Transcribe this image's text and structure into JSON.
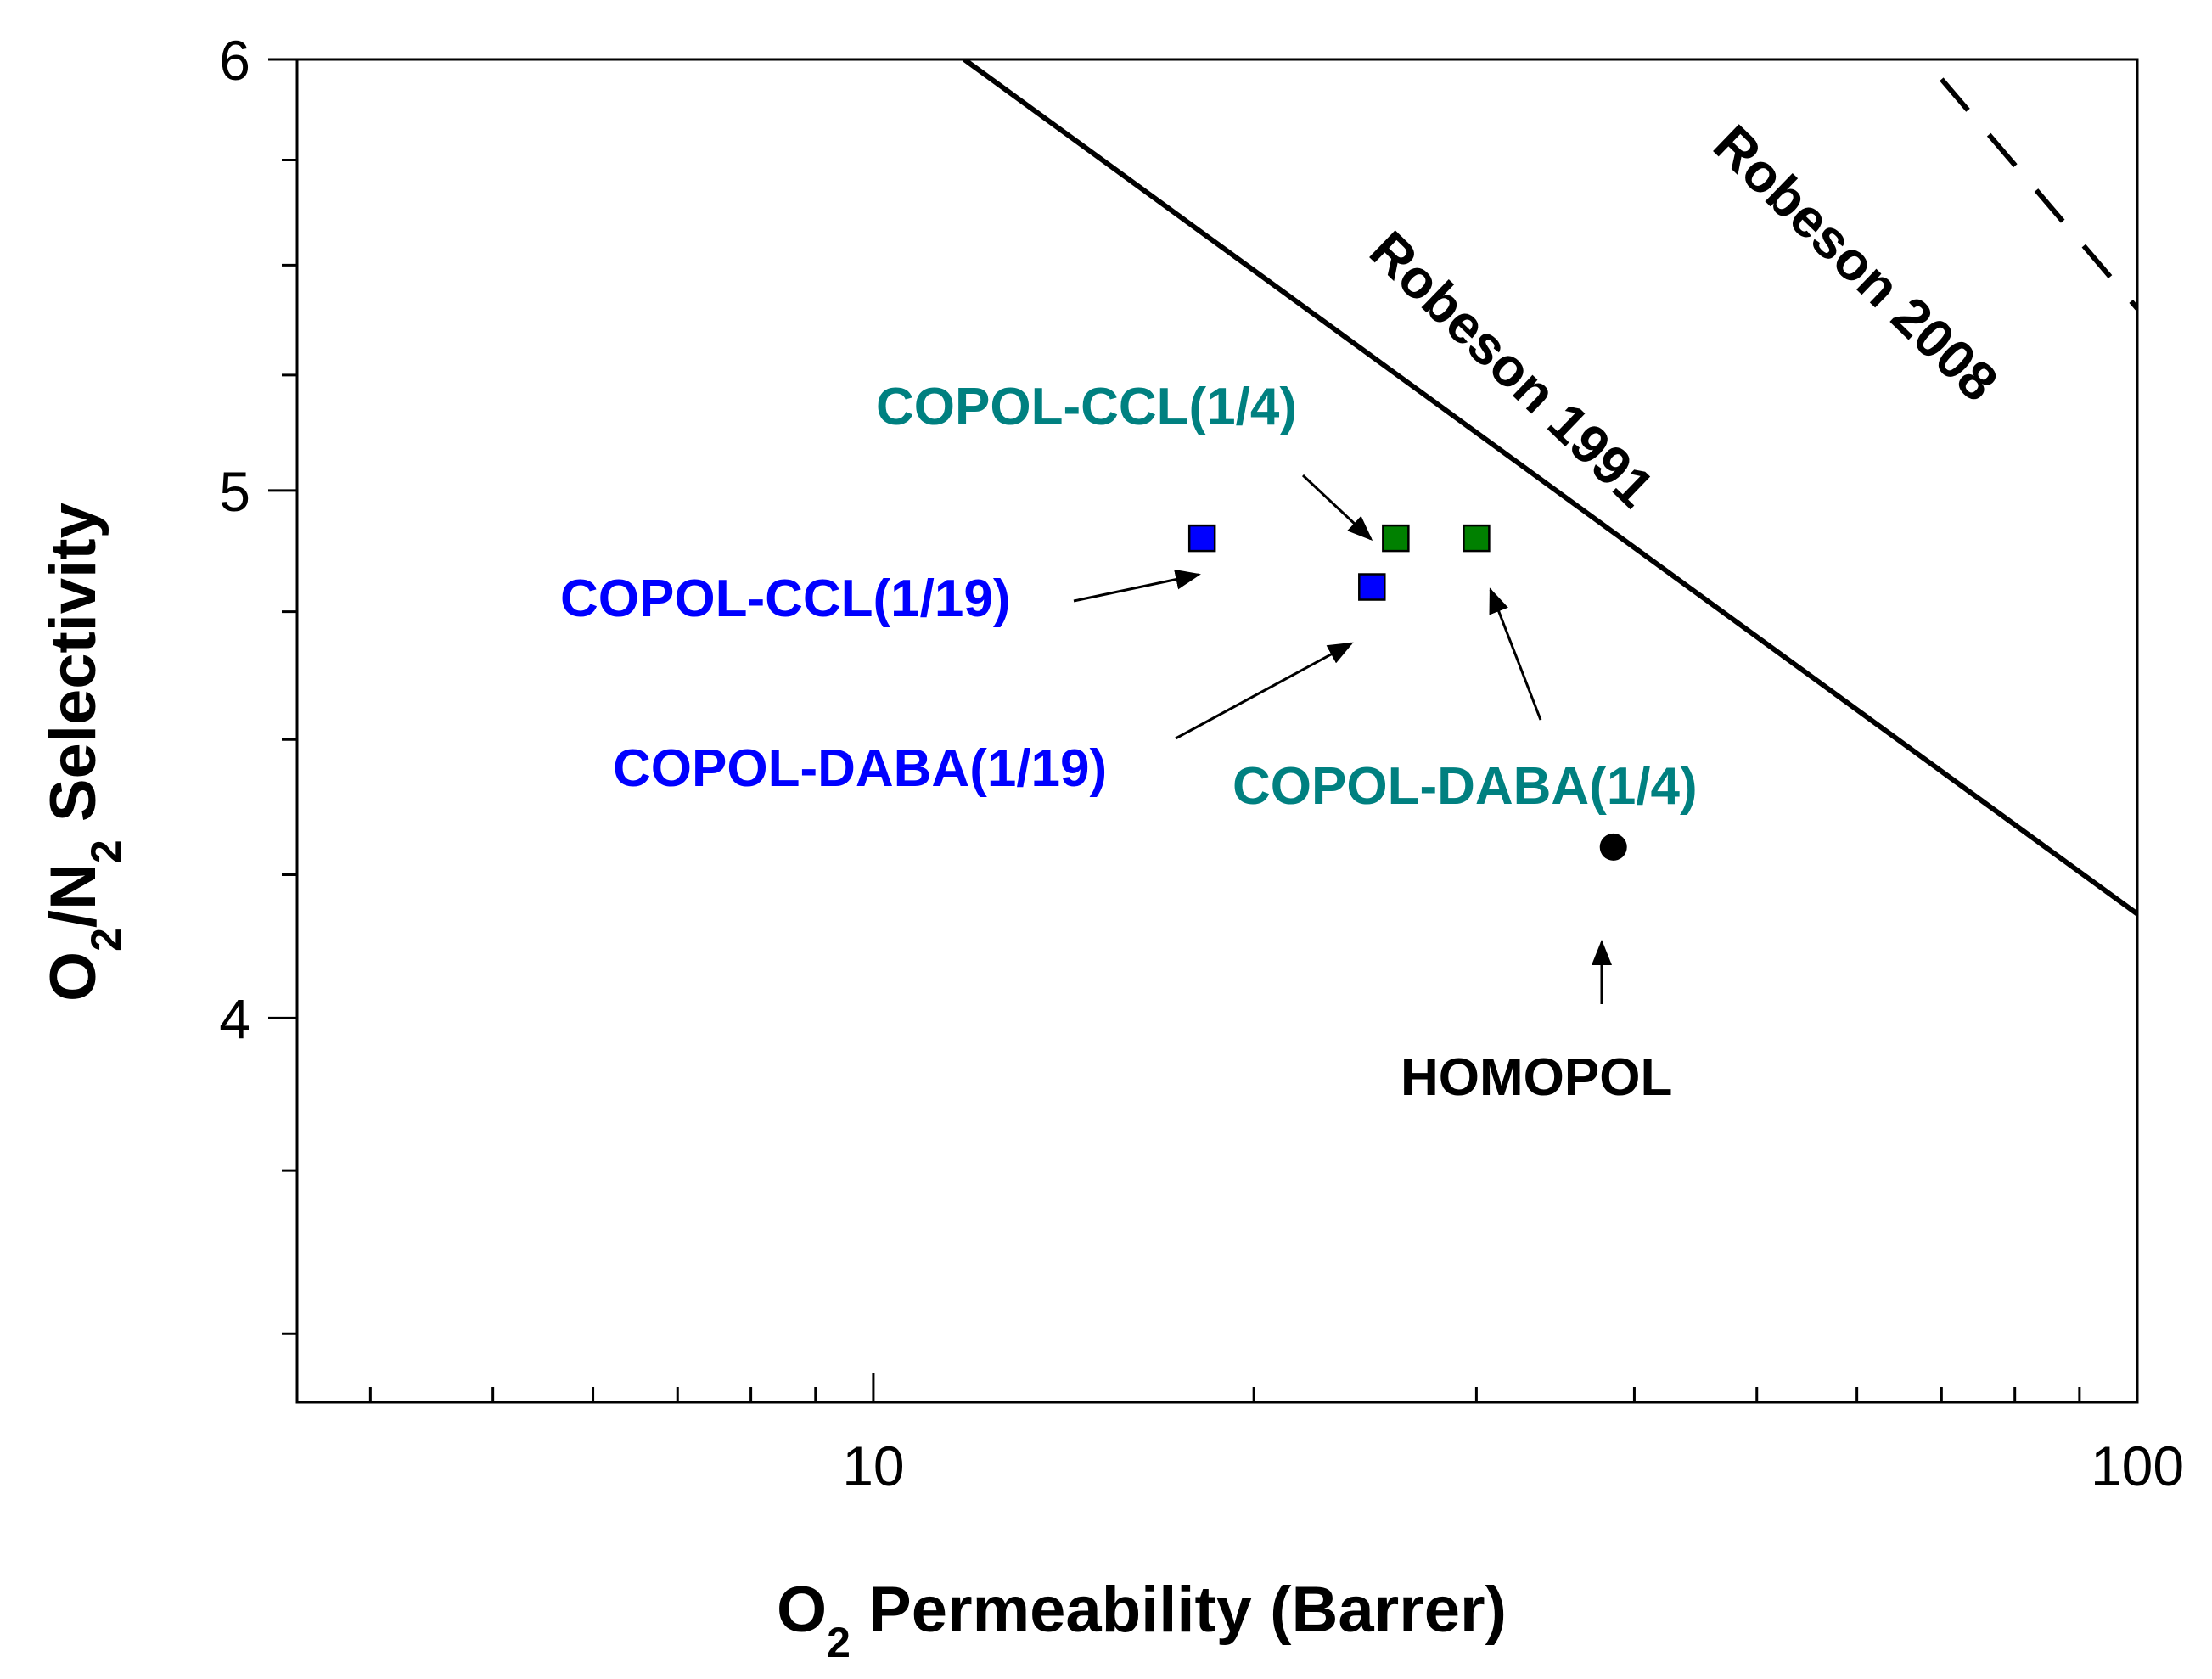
{
  "chart_data": {
    "type": "scatter",
    "x_scale": "log",
    "xlim": [
      3.5,
      100
    ],
    "ylim": [
      3.4,
      6
    ],
    "y_scale": "log",
    "x_tick_labels": [
      {
        "value": 10,
        "label": "10"
      },
      {
        "value": 100,
        "label": "100"
      }
    ],
    "x_minor_ticks": [
      4,
      5,
      6,
      7,
      8,
      9,
      20,
      30,
      40,
      50,
      60,
      70,
      80,
      90
    ],
    "y_tick_labels": [
      {
        "value": 4,
        "label": "4"
      },
      {
        "value": 5,
        "label": "5"
      },
      {
        "value": 6,
        "label": "6"
      }
    ],
    "y_minor_ticks": [
      3.5,
      3.75,
      4.25,
      4.5,
      4.75,
      5.25,
      5.5,
      5.75
    ],
    "xlabel": {
      "main": "O",
      "sub": "2",
      "rest": " Permeability  (Barrer)"
    },
    "ylabel": {
      "p1": "O",
      "s1": "2",
      "p2": "/N",
      "s2": "2",
      "p3": " Selectivity"
    },
    "points": [
      {
        "name": "COPOL-CCL(1/19)",
        "x": 18.2,
        "y": 4.9,
        "marker": "square",
        "color": "#0000ff"
      },
      {
        "name": "COPOL-DABA(1/19)",
        "x": 24.8,
        "y": 4.8,
        "marker": "square",
        "color": "#0000ff"
      },
      {
        "name": "COPOL-CCL(1/4)",
        "x": 25.9,
        "y": 4.9,
        "marker": "square",
        "color": "#008000"
      },
      {
        "name": "COPOL-DABA(1/4)",
        "x": 30.0,
        "y": 4.9,
        "marker": "square",
        "color": "#008000"
      },
      {
        "name": "HOMOPOL",
        "x": 38.5,
        "y": 4.3,
        "marker": "circle",
        "color": "#000000"
      }
    ],
    "upper_bounds": [
      {
        "name": "Robeson 1991",
        "style": "solid",
        "x": [
          11.8,
          100
        ],
        "y": [
          6.0,
          4.18
        ]
      },
      {
        "name": "Robeson 2008",
        "style": "dashed",
        "x": [
          70,
          100
        ],
        "y": [
          5.95,
          5.4
        ]
      }
    ],
    "annotations": [
      {
        "text": "COPOL-CCL(1/19)",
        "color": "#0000ff"
      },
      {
        "text": "COPOL-DABA(1/19)",
        "color": "#0000ff"
      },
      {
        "text": "COPOL-CCL(1/4)",
        "color": "#008080"
      },
      {
        "text": "COPOL-DABA(1/4)",
        "color": "#008080"
      },
      {
        "text": "HOMOPOL",
        "color": "#000000"
      },
      {
        "text": "Robeson 1991",
        "color": "#000000"
      },
      {
        "text": "Robeson 2008",
        "color": "#000000"
      }
    ]
  }
}
